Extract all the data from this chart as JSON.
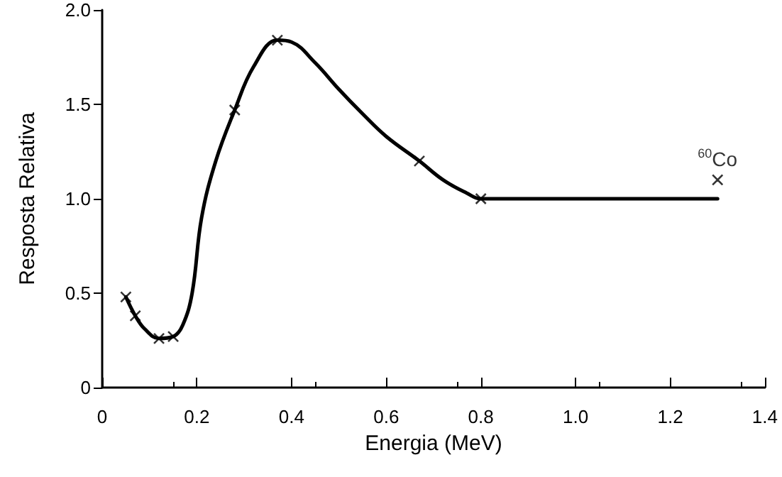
{
  "chart_data": {
    "type": "line",
    "xlabel": "Energia (MeV)",
    "ylabel": "Resposta Relativa",
    "xlim": [
      0,
      1.4
    ],
    "xticks": [
      0,
      {
        "value": 0.2,
        "label": "0.2"
      },
      {
        "value": 0.4,
        "label": "0.4"
      },
      {
        "value": 0.6,
        "label": "0.6"
      },
      {
        "value": 0.8,
        "label": "0.8"
      },
      {
        "value": 1.0,
        "label": "1.0"
      },
      {
        "value": 1.2,
        "label": "1.2"
      },
      {
        "value": 1.4,
        "label": "1.4"
      }
    ],
    "ylim": [
      0,
      2
    ],
    "yticks": [
      0,
      {
        "value": 0.5,
        "label": "0.5"
      },
      {
        "value": 1,
        "label": "1.0"
      },
      {
        "value": 1.5,
        "label": "1.5"
      },
      {
        "value": 2,
        "label": "2.0"
      }
    ],
    "grid": false,
    "series": [
      {
        "color": "#000000",
        "marker": "none",
        "line_style": "solid",
        "x": [
          0.05,
          0.07,
          0.09,
          0.12,
          0.15,
          0.17,
          0.19,
          0.21,
          0.24,
          0.28,
          0.32,
          0.37,
          0.4,
          0.45,
          0.5,
          0.55,
          0.6,
          0.67,
          0.72,
          0.77,
          0.8,
          0.9,
          1.0,
          1.3
        ],
        "values": [
          0.48,
          0.38,
          0.31,
          0.26,
          0.27,
          0.33,
          0.5,
          0.9,
          1.2,
          1.47,
          1.7,
          1.84,
          1.83,
          1.72,
          1.58,
          1.45,
          1.33,
          1.2,
          1.1,
          1.03,
          1.0,
          1.0,
          1.0,
          1.0
        ]
      },
      {
        "type": "scatter",
        "color": "#000000",
        "marker": "cross",
        "x": [
          0.05,
          0.07,
          0.12,
          0.15,
          0.28,
          0.37,
          0.67,
          0.8,
          1.3
        ],
        "values": [
          0.48,
          0.38,
          0.26,
          0.27,
          1.47,
          1.84,
          1.2,
          1.0,
          1.1
        ]
      }
    ],
    "annotations": [
      {
        "text": "$^{60}$Co",
        "x": 1.3,
        "y": 1.1
      }
    ]
  }
}
